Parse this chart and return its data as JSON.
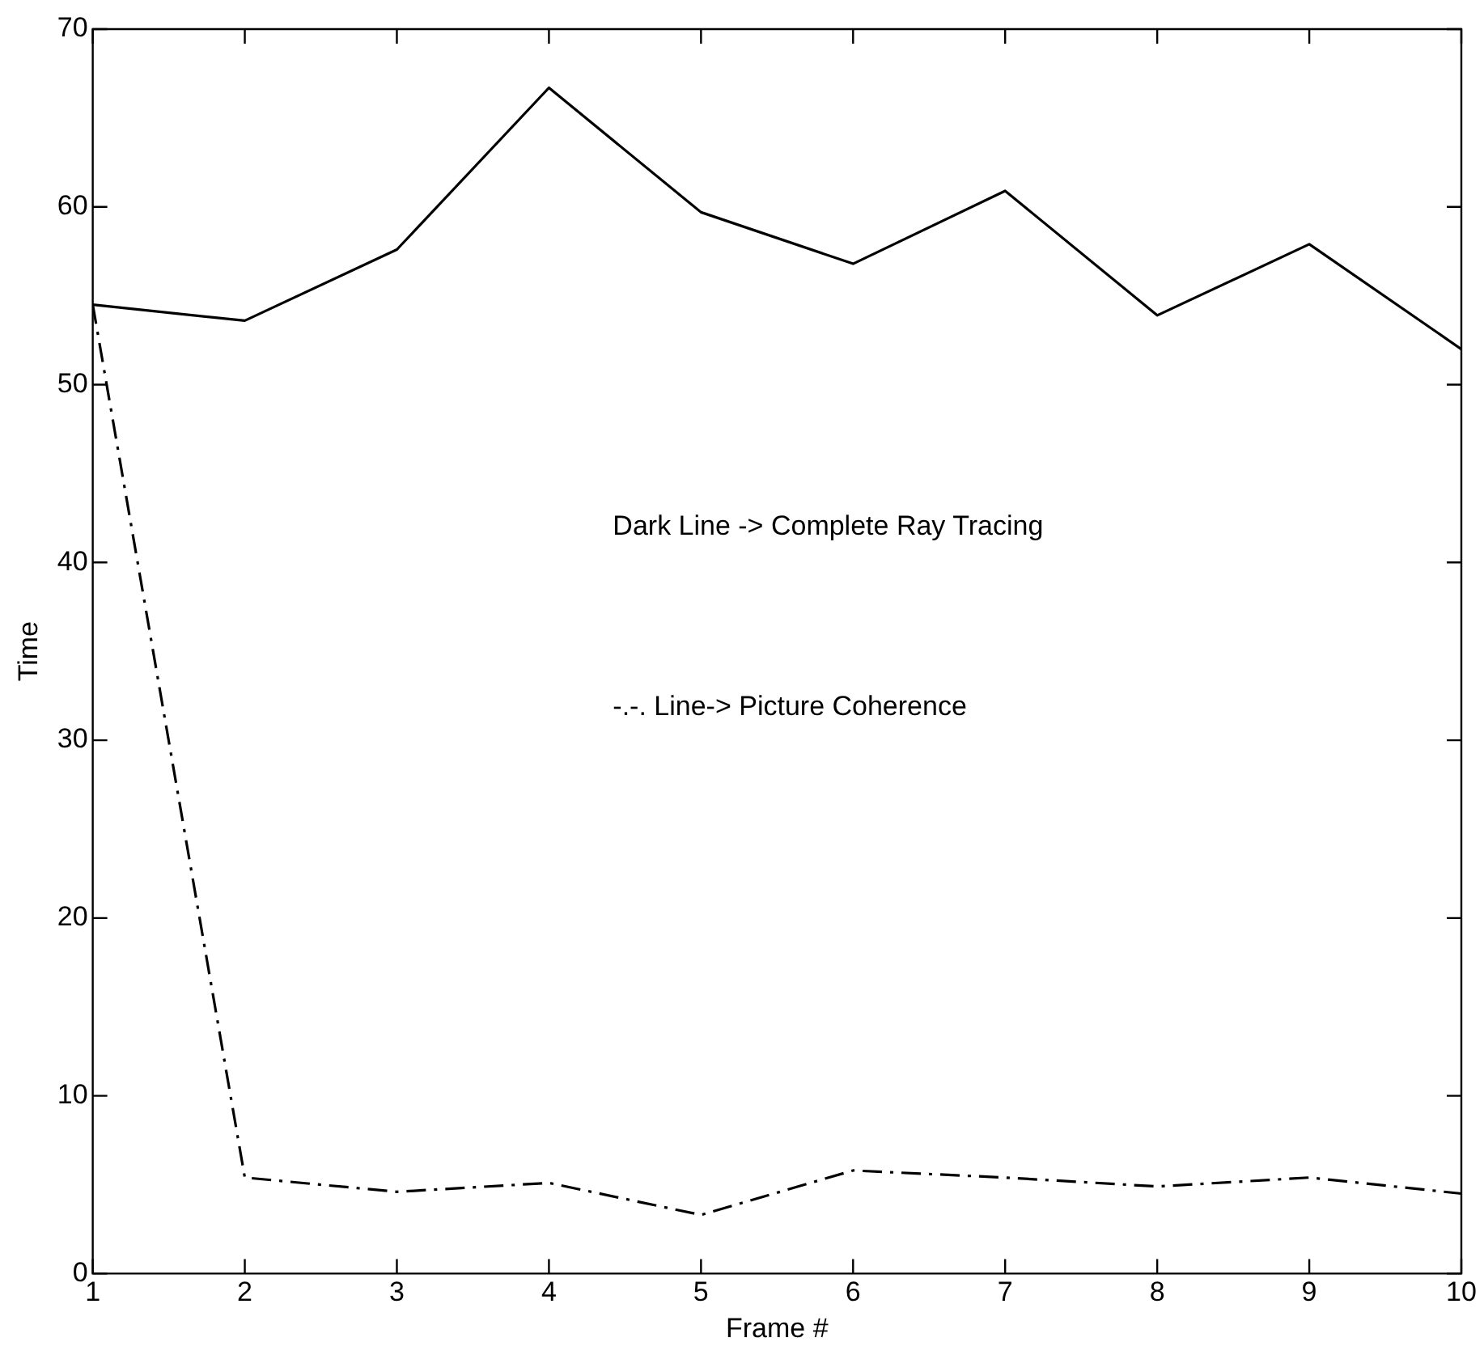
{
  "chart_data": {
    "type": "line",
    "xlabel": "Frame #",
    "ylabel": "Time",
    "x": [
      1,
      2,
      3,
      4,
      5,
      6,
      7,
      8,
      9,
      10
    ],
    "series": [
      {
        "color": "#000000",
        "line_style": "solid",
        "values": [
          54.5,
          53.6,
          57.6,
          66.7,
          59.7,
          56.8,
          60.9,
          53.9,
          57.9,
          52.0
        ]
      },
      {
        "color": "#000000",
        "line_style": "dashdot",
        "values": [
          54.5,
          5.4,
          4.6,
          5.1,
          3.3,
          5.8,
          5.4,
          4.9,
          5.4,
          4.5
        ]
      }
    ],
    "xlim": [
      1,
      10
    ],
    "xticks": [
      1,
      2,
      3,
      4,
      5,
      6,
      7,
      8,
      9,
      10
    ],
    "ylim": [
      0,
      70
    ],
    "yticks": [
      0,
      10,
      20,
      30,
      40,
      50,
      60,
      70
    ],
    "marker": "none",
    "annotations": [
      "Dark Line -> Complete Ray Tracing",
      "-.-. Line-> Picture Coherence"
    ]
  }
}
